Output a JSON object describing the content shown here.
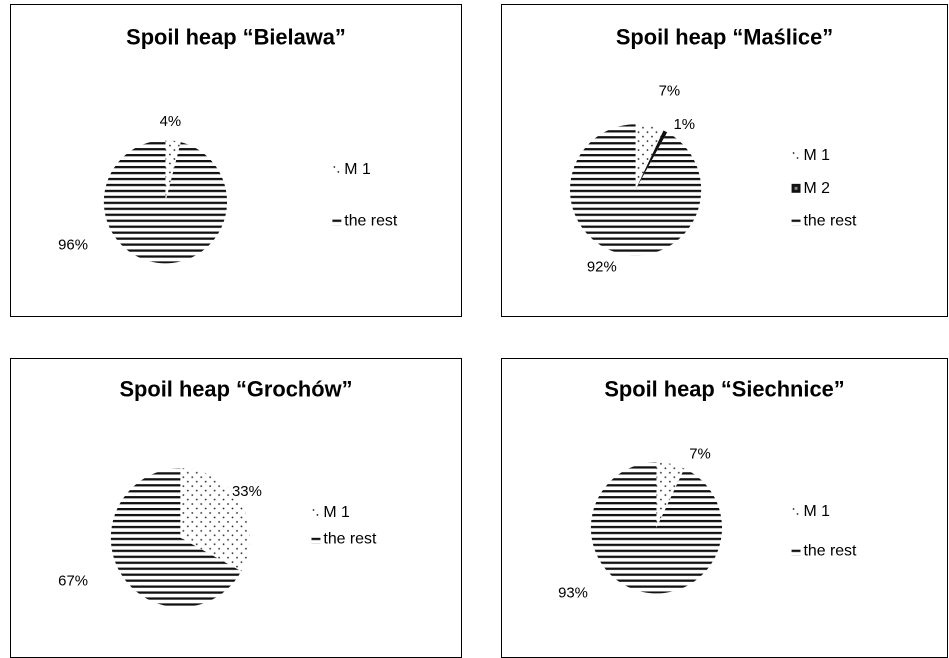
{
  "chart_data": [
    {
      "type": "pie",
      "title": "Spoil heap “Bielawa”",
      "slices": [
        {
          "name": "M 1",
          "value": 4,
          "label": "4%",
          "pattern": "dots"
        },
        {
          "name": "the rest",
          "value": 96,
          "label": "96%",
          "pattern": "stripes"
        }
      ],
      "legend": "right"
    },
    {
      "type": "pie",
      "title": "Spoil heap “Maślice”",
      "slices": [
        {
          "name": "M 1",
          "value": 7,
          "label": "7%",
          "pattern": "dots"
        },
        {
          "name": "M 2",
          "value": 1,
          "label": "1%",
          "pattern": "solid"
        },
        {
          "name": "the rest",
          "value": 92,
          "label": "92%",
          "pattern": "stripes"
        }
      ],
      "legend": "right"
    },
    {
      "type": "pie",
      "title": "Spoil heap “Grochów”",
      "slices": [
        {
          "name": "M 1",
          "value": 33,
          "label": "33%",
          "pattern": "dots"
        },
        {
          "name": "the rest",
          "value": 67,
          "label": "67%",
          "pattern": "stripes"
        }
      ],
      "legend": "right"
    },
    {
      "type": "pie",
      "title": "Spoil heap “Siechnice”",
      "slices": [
        {
          "name": "M 1",
          "value": 7,
          "label": "7%",
          "pattern": "dots"
        },
        {
          "name": "the rest",
          "value": 93,
          "label": "93%",
          "pattern": "stripes"
        }
      ],
      "legend": "right"
    }
  ]
}
